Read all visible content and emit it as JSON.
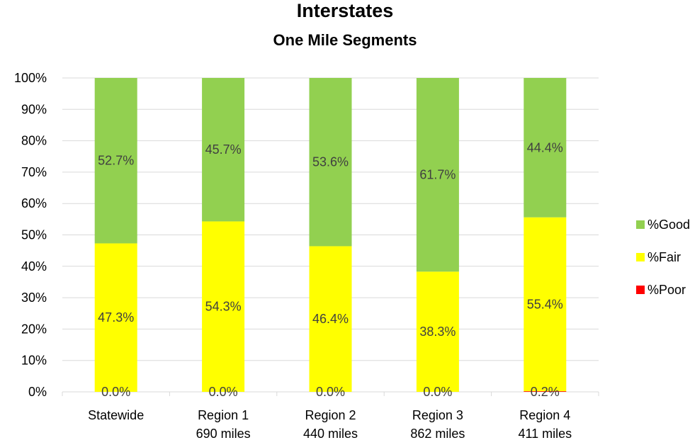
{
  "chart_data": {
    "type": "bar",
    "stacked": true,
    "title": "Interstates",
    "subtitle": "One Mile Segments",
    "categories": [
      [
        "Statewide"
      ],
      [
        "Region 1",
        "690 miles"
      ],
      [
        "Region 2",
        "440 miles"
      ],
      [
        "Region 3",
        "862 miles"
      ],
      [
        "Region 4",
        "411 miles"
      ]
    ],
    "series": [
      {
        "name": "%Poor",
        "color": "#ff0000",
        "values": [
          0.0,
          0.0,
          0.0,
          0.0,
          0.2
        ],
        "labels": [
          "0.0%",
          "0.0%",
          "0.0%",
          "0.0%",
          "0.2%"
        ]
      },
      {
        "name": "%Fair",
        "color": "#ffff00",
        "values": [
          47.3,
          54.3,
          46.4,
          38.3,
          55.4
        ],
        "labels": [
          "47.3%",
          "54.3%",
          "46.4%",
          "38.3%",
          "55.4%"
        ]
      },
      {
        "name": "%Good",
        "color": "#92d050",
        "values": [
          52.7,
          45.7,
          53.6,
          61.7,
          44.4
        ],
        "labels": [
          "52.7%",
          "45.7%",
          "53.6%",
          "61.7%",
          "44.4%"
        ]
      }
    ],
    "ylim": [
      0,
      100
    ],
    "yticks": [
      "0%",
      "10%",
      "20%",
      "30%",
      "40%",
      "50%",
      "60%",
      "70%",
      "80%",
      "90%",
      "100%"
    ],
    "legend": {
      "position": "right",
      "order": [
        "%Good",
        "%Fair",
        "%Poor"
      ]
    },
    "grid": true,
    "gridColor": "#d9d9d9"
  }
}
